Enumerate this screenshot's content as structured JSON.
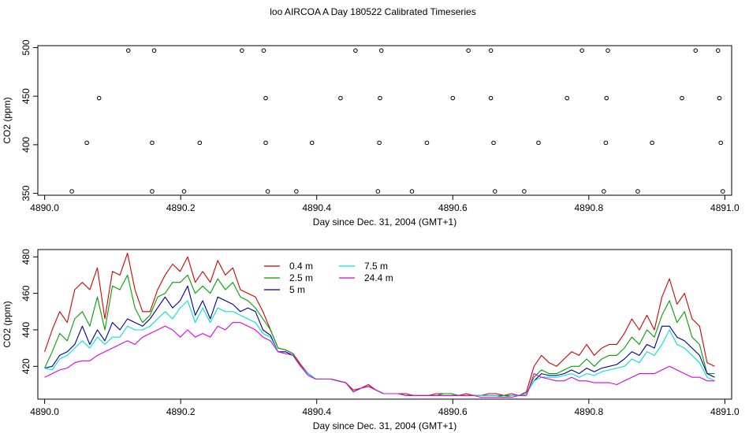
{
  "title": "loo AIRCOA A  Day 180522  Calibrated Timeseries",
  "chart_data": [
    {
      "type": "scatter",
      "title": "",
      "xlabel": "Day since Dec. 31, 2004 (GMT+1)",
      "ylabel": "CO2 (ppm)",
      "xlim": [
        4889.99,
        4891.01
      ],
      "ylim": [
        348,
        502
      ],
      "xticks": [
        "4890.0",
        "4890.2",
        "4890.4",
        "4890.6",
        "4890.8",
        "4891.0"
      ],
      "yticks": [
        "350",
        "400",
        "450",
        "500"
      ],
      "points": [
        [
          4890.04,
          352
        ],
        [
          4890.062,
          402
        ],
        [
          4890.08,
          448
        ],
        [
          4890.123,
          497
        ],
        [
          4890.158,
          352
        ],
        [
          4890.158,
          402
        ],
        [
          4890.161,
          497
        ],
        [
          4890.205,
          352
        ],
        [
          4890.228,
          402
        ],
        [
          4890.29,
          497
        ],
        [
          4890.322,
          497
        ],
        [
          4890.325,
          448
        ],
        [
          4890.325,
          402
        ],
        [
          4890.328,
          352
        ],
        [
          4890.37,
          352
        ],
        [
          4890.393,
          402
        ],
        [
          4890.435,
          448
        ],
        [
          4890.457,
          497
        ],
        [
          4890.49,
          352
        ],
        [
          4890.492,
          402
        ],
        [
          4890.493,
          448
        ],
        [
          4890.495,
          497
        ],
        [
          4890.54,
          352
        ],
        [
          4890.562,
          402
        ],
        [
          4890.6,
          448
        ],
        [
          4890.623,
          497
        ],
        [
          4890.656,
          497
        ],
        [
          4890.656,
          448
        ],
        [
          4890.66,
          402
        ],
        [
          4890.662,
          352
        ],
        [
          4890.705,
          352
        ],
        [
          4890.726,
          402
        ],
        [
          4890.768,
          448
        ],
        [
          4890.79,
          497
        ],
        [
          4890.822,
          352
        ],
        [
          4890.825,
          402
        ],
        [
          4890.826,
          448
        ],
        [
          4890.828,
          497
        ],
        [
          4890.872,
          352
        ],
        [
          4890.893,
          402
        ],
        [
          4890.937,
          448
        ],
        [
          4890.957,
          497
        ],
        [
          4890.99,
          497
        ],
        [
          4890.992,
          448
        ],
        [
          4890.994,
          402
        ],
        [
          4890.997,
          352
        ]
      ]
    },
    {
      "type": "line",
      "title": "",
      "xlabel": "Day since Dec. 31, 2004 (GMT+1)",
      "ylabel": "CO2 (ppm)",
      "xlim": [
        4889.99,
        4891.01
      ],
      "ylim": [
        402,
        484
      ],
      "xticks": [
        "4890.0",
        "4890.2",
        "4890.4",
        "4890.6",
        "4890.8",
        "4891.0"
      ],
      "yticks": [
        "420",
        "440",
        "460",
        "480"
      ],
      "legend_position": "top-left",
      "series": [
        {
          "name": "0.4 m",
          "color": "#d40000",
          "values": [
            428,
            440,
            450,
            444,
            462,
            466,
            462,
            474,
            446,
            472,
            470,
            482,
            462,
            450,
            450,
            462,
            470,
            476,
            472,
            480,
            466,
            472,
            466,
            478,
            470,
            474,
            462,
            460,
            458,
            450,
            440,
            430,
            429,
            427,
            421,
            416,
            413,
            413,
            413,
            412,
            411,
            407,
            408,
            410,
            407,
            405,
            405,
            405,
            405,
            404,
            404,
            404,
            405,
            405,
            405,
            404,
            405,
            404,
            404,
            405,
            405,
            404,
            405,
            404,
            406,
            420,
            426,
            422,
            420,
            424,
            428,
            426,
            432,
            426,
            430,
            432,
            432,
            438,
            446,
            440,
            448,
            440,
            458,
            468,
            454,
            460,
            446,
            442,
            422,
            420
          ]
        },
        {
          "name": "2.5 m",
          "color": "#00a000",
          "values": [
            419,
            428,
            438,
            434,
            446,
            450,
            442,
            458,
            440,
            464,
            462,
            470,
            452,
            444,
            448,
            458,
            460,
            466,
            466,
            470,
            460,
            464,
            460,
            468,
            462,
            466,
            458,
            456,
            452,
            446,
            440,
            430,
            429,
            427,
            420,
            416,
            413,
            413,
            413,
            412,
            411,
            406,
            408,
            409,
            407,
            405,
            405,
            405,
            404,
            404,
            404,
            404,
            404,
            405,
            405,
            404,
            404,
            404,
            404,
            404,
            404,
            404,
            404,
            404,
            405,
            414,
            418,
            416,
            416,
            418,
            420,
            420,
            424,
            420,
            424,
            426,
            426,
            430,
            436,
            432,
            440,
            436,
            448,
            456,
            444,
            450,
            436,
            432,
            416,
            416
          ]
        },
        {
          "name": "5 m",
          "color": "#00008b",
          "values": [
            419,
            420,
            426,
            428,
            432,
            442,
            432,
            440,
            434,
            444,
            440,
            446,
            444,
            442,
            446,
            452,
            458,
            452,
            456,
            464,
            448,
            456,
            446,
            458,
            456,
            454,
            450,
            452,
            450,
            440,
            437,
            428,
            428,
            426,
            420,
            416,
            413,
            413,
            413,
            412,
            411,
            406,
            408,
            409,
            407,
            405,
            405,
            405,
            404,
            404,
            404,
            404,
            404,
            404,
            404,
            404,
            404,
            404,
            404,
            404,
            404,
            403,
            404,
            404,
            405,
            412,
            416,
            415,
            415,
            416,
            418,
            416,
            419,
            417,
            419,
            420,
            421,
            424,
            428,
            426,
            432,
            430,
            442,
            442,
            436,
            434,
            430,
            426,
            416,
            414
          ]
        },
        {
          "name": "7.5 m",
          "color": "#00e0e0",
          "values": [
            419,
            418,
            424,
            426,
            430,
            434,
            430,
            436,
            432,
            436,
            436,
            442,
            440,
            440,
            442,
            446,
            450,
            446,
            452,
            456,
            444,
            452,
            444,
            452,
            450,
            450,
            448,
            446,
            444,
            438,
            436,
            428,
            427,
            426,
            420,
            416,
            413,
            413,
            413,
            412,
            411,
            406,
            408,
            409,
            407,
            405,
            405,
            405,
            404,
            404,
            404,
            404,
            404,
            404,
            404,
            404,
            404,
            404,
            404,
            404,
            404,
            403,
            404,
            404,
            405,
            412,
            414,
            414,
            414,
            415,
            416,
            414,
            416,
            415,
            417,
            418,
            419,
            420,
            424,
            422,
            428,
            426,
            432,
            440,
            432,
            430,
            426,
            422,
            414,
            412
          ]
        },
        {
          "name": "24.4 m",
          "color": "#e000e0",
          "values": [
            414,
            416,
            418,
            419,
            422,
            423,
            423,
            426,
            428,
            430,
            432,
            434,
            432,
            436,
            438,
            440,
            442,
            440,
            436,
            440,
            436,
            438,
            436,
            442,
            440,
            444,
            444,
            442,
            440,
            436,
            434,
            428,
            427,
            426,
            420,
            415,
            413,
            413,
            413,
            412,
            411,
            406,
            408,
            409,
            407,
            405,
            405,
            405,
            404,
            404,
            404,
            404,
            404,
            404,
            404,
            404,
            404,
            404,
            403,
            403,
            403,
            403,
            403,
            404,
            404,
            416,
            414,
            413,
            412,
            412,
            414,
            412,
            412,
            411,
            411,
            411,
            410,
            412,
            414,
            416,
            416,
            416,
            418,
            420,
            418,
            416,
            414,
            414,
            412,
            412
          ]
        }
      ]
    }
  ]
}
